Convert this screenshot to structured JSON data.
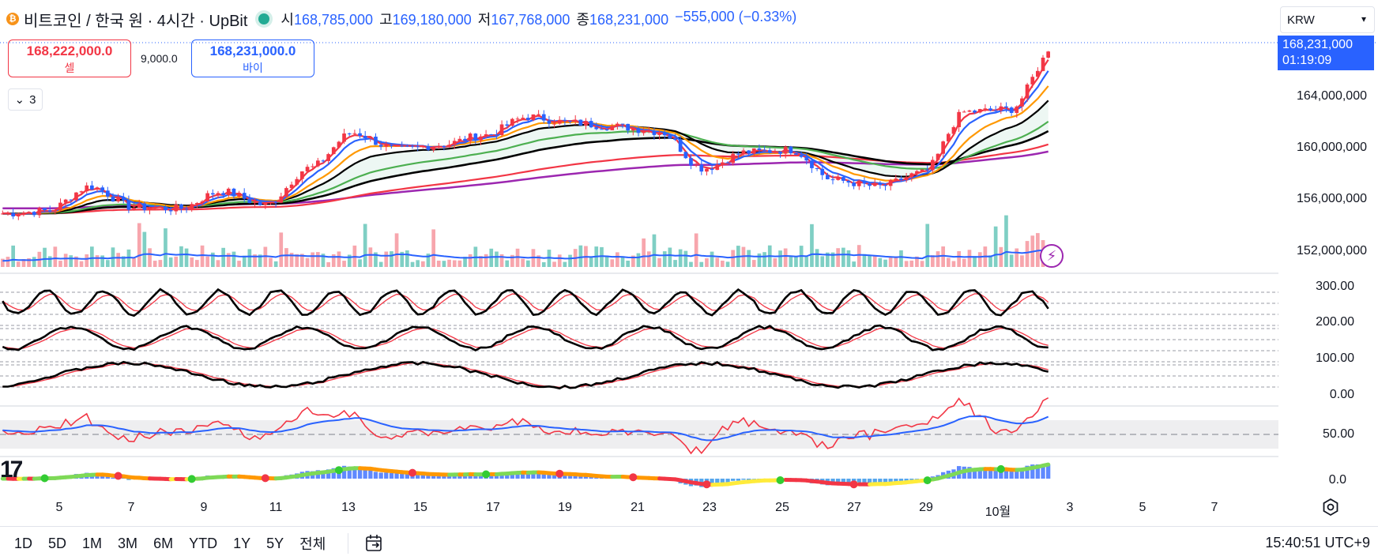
{
  "header": {
    "symbol_title": "비트코인 / 한국 원 · 4시간 · UpBit",
    "coin_glyph": "₿",
    "open_label": "시",
    "open_value": "168,785,000",
    "high_label": "고",
    "high_value": "169,180,000",
    "low_label": "저",
    "low_value": "167,768,000",
    "close_label": "종",
    "close_value": "168,231,000",
    "change": "−555,000 (−0.33%)"
  },
  "trade": {
    "sell_price": "168,222,000.0",
    "sell_label": "셀",
    "spread": "9,000.0",
    "buy_price": "168,231,000.0",
    "buy_label": "바이"
  },
  "collapse": {
    "count": "3",
    "chevron": "⌄"
  },
  "currency": {
    "selected": "KRW"
  },
  "price_tag": {
    "price": "168,231,000",
    "countdown": "01:19:09"
  },
  "price_axis": [
    "164,000,000",
    "160,000,000",
    "156,000,000",
    "152,000,000"
  ],
  "osc_axis": [
    "300.00",
    "200.00",
    "100.00",
    "0.00"
  ],
  "rsi_axis": "50.00",
  "macd_axis": "0.0",
  "date_axis": [
    "5",
    "7",
    "9",
    "11",
    "13",
    "15",
    "17",
    "19",
    "21",
    "23",
    "25",
    "27",
    "29",
    "10월",
    "3",
    "5",
    "7"
  ],
  "timeframes": [
    "1D",
    "5D",
    "1M",
    "3M",
    "6M",
    "YTD",
    "1Y",
    "5Y",
    "전체"
  ],
  "clock": "15:40:51 UTC+9",
  "logo_text": "17",
  "colors": {
    "up": "#f23645",
    "down": "#2962ff",
    "vol_up": "#f7a6ad",
    "vol_down": "#7fcfc4",
    "accent": "#2962ff"
  },
  "chart_data": {
    "type": "candlestick",
    "title": "비트코인 / 한국 원 · 4시간 · UpBit",
    "y_range": [
      150500000,
      170500000
    ],
    "x_range_days": [
      "Sep 4",
      "Oct 7"
    ],
    "current_price": 168231000,
    "price_anchors": [
      [
        0,
        155000000
      ],
      [
        3,
        155200000
      ],
      [
        6,
        157200000
      ],
      [
        9,
        155500000
      ],
      [
        12,
        155400000
      ],
      [
        15,
        156800000
      ],
      [
        18,
        155700000
      ],
      [
        21,
        158700000
      ],
      [
        24,
        161600000
      ],
      [
        27,
        160200000
      ],
      [
        30,
        160600000
      ],
      [
        33,
        161400000
      ],
      [
        36,
        162900000
      ],
      [
        39,
        162400000
      ],
      [
        42,
        162100000
      ],
      [
        45,
        161700000
      ],
      [
        48,
        158700000
      ],
      [
        51,
        160000000
      ],
      [
        54,
        160200000
      ],
      [
        57,
        157700000
      ],
      [
        60,
        157200000
      ],
      [
        63,
        158300000
      ],
      [
        66,
        163300000
      ],
      [
        69,
        163500000
      ],
      [
        72,
        168300000
      ]
    ],
    "volume_note": "volume histogram with moving average (blue)",
    "indicators": [
      "EMA ribbon",
      "SMA 200 (purple)",
      "Stochastic x3 (0–300)",
      "RSI (50 line)",
      "MACD histogram"
    ]
  }
}
